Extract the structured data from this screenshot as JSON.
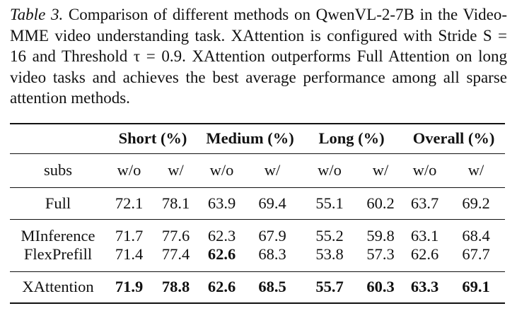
{
  "caption": {
    "label": "Table 3.",
    "text": "Comparison of different methods on QwenVL-2-7B in the Video-MME video understanding task. XAttention is configured with Stride S = 16 and Threshold τ = 0.9. XAttention outperforms Full Attention on long video tasks and achieves the best average performance among all sparse attention methods."
  },
  "table": {
    "groups": [
      "Short (%)",
      "Medium (%)",
      "Long (%)",
      "Overall (%)"
    ],
    "subheader": [
      "subs",
      "w/o",
      "w/",
      "w/o",
      "w/",
      "w/o",
      "w/",
      "w/o",
      "w/"
    ],
    "sections": [
      [
        {
          "name": "Full",
          "values": [
            72.1,
            78.1,
            63.9,
            69.4,
            55.1,
            60.2,
            63.7,
            69.2
          ],
          "bold": []
        }
      ],
      [
        {
          "name": "MInference",
          "values": [
            71.7,
            77.6,
            62.3,
            67.9,
            55.2,
            59.8,
            63.1,
            68.4
          ],
          "bold": []
        },
        {
          "name": "FlexPrefill",
          "values": [
            71.4,
            77.4,
            62.6,
            68.3,
            53.8,
            57.3,
            62.6,
            67.7
          ],
          "bold": [
            2
          ]
        }
      ],
      [
        {
          "name": "XAttention",
          "values": [
            71.9,
            78.8,
            62.6,
            68.5,
            55.7,
            60.3,
            63.3,
            69.1
          ],
          "bold": [
            0,
            1,
            2,
            3,
            4,
            5,
            6,
            7
          ]
        }
      ]
    ]
  }
}
